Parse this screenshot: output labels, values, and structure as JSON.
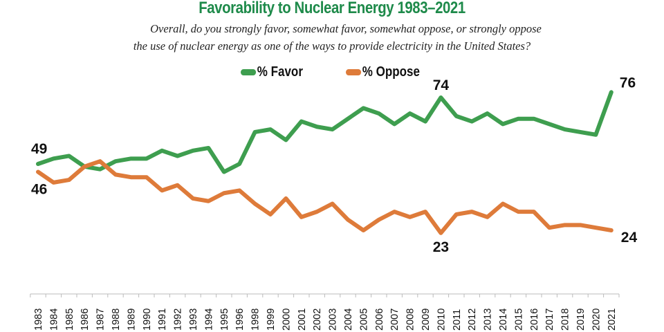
{
  "title": "Favorability to Nuclear Energy 1983–2021",
  "subtitle_line1": "Overall, do you strongly favor, somewhat favor, somewhat oppose, or strongly oppose",
  "subtitle_line2": "the use of nuclear energy as one of the ways to provide electricity in the United States?",
  "chart_data": {
    "type": "line",
    "title": "Favorability to Nuclear Energy 1983–2021",
    "categories": [
      "1983",
      "1984",
      "1985",
      "1986",
      "1987",
      "1988",
      "1989",
      "1990",
      "1991",
      "1992",
      "1993",
      "1994",
      "1995",
      "1996",
      "1998",
      "1999",
      "2000",
      "2001",
      "2002",
      "2003",
      "2004",
      "2005",
      "2006",
      "2007",
      "2008",
      "2009",
      "2010",
      "2011",
      "2012",
      "2013",
      "2014",
      "2015",
      "2016",
      "2017",
      "2018",
      "2019",
      "2020",
      "2021"
    ],
    "series": [
      {
        "name": "% Favor",
        "color": "#3e9e4f",
        "values": [
          49,
          51,
          52,
          48,
          47,
          50,
          51,
          51,
          54,
          52,
          54,
          55,
          46,
          49,
          61,
          62,
          58,
          65,
          63,
          62,
          66,
          70,
          68,
          64,
          68,
          65,
          74,
          67,
          65,
          68,
          64,
          66,
          66,
          64,
          62,
          61,
          60,
          76
        ]
      },
      {
        "name": "% Oppose",
        "color": "#de7b3a",
        "values": [
          46,
          42,
          43,
          48,
          50,
          45,
          44,
          44,
          39,
          41,
          36,
          35,
          38,
          39,
          34,
          30,
          36,
          29,
          31,
          34,
          28,
          24,
          28,
          31,
          29,
          31,
          23,
          30,
          31,
          29,
          34,
          31,
          31,
          25,
          26,
          26,
          25,
          24
        ]
      }
    ],
    "data_labels": [
      {
        "series": 0,
        "category": "1983",
        "text": "49"
      },
      {
        "series": 1,
        "category": "1983",
        "text": "46"
      },
      {
        "series": 0,
        "category": "2010",
        "text": "74"
      },
      {
        "series": 1,
        "category": "2010",
        "text": "23"
      },
      {
        "series": 0,
        "category": "2021",
        "text": "76"
      },
      {
        "series": 1,
        "category": "2021",
        "text": "24"
      }
    ],
    "xlabel": "",
    "ylabel": "",
    "y_axis_visible": false,
    "grid": false,
    "legend": "top-center"
  }
}
